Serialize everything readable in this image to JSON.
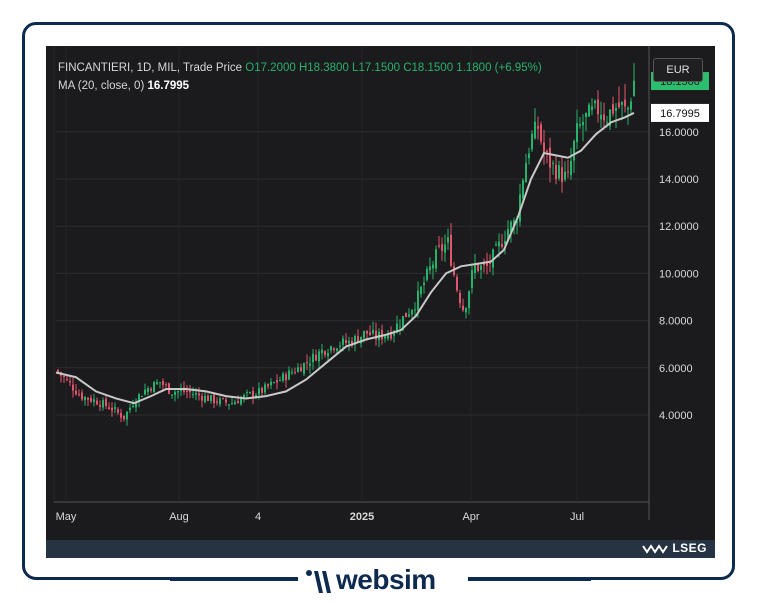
{
  "legend": {
    "line1_prefix": "FINCANTIERI, 1D, MIL, Trade Price",
    "open": "O17.2000",
    "high": "H18.3800",
    "low": "L17.1500",
    "close": "C18.1500",
    "change": "1.1800 (+6.95%)",
    "ma_label": "MA (20, close, 0)",
    "ma_value": "16.7995"
  },
  "currency": "EUR",
  "price_tags": {
    "last": "18.1500",
    "ma": "16.7995"
  },
  "footer": {
    "provider": "LSEG"
  },
  "brand": {
    "name": "websim"
  },
  "colors": {
    "up": "#26b36b",
    "down": "#e2566c",
    "ma": "#c8c8c8",
    "background": "#1b1b1d",
    "accent_tag": "#2dbd6e"
  },
  "chart_data": {
    "type": "candlestick",
    "title": "FINCANTIERI, 1D, MIL, Trade Price",
    "y_ticks": [
      "4.0000",
      "6.0000",
      "8.0000",
      "10.0000",
      "12.0000",
      "14.0000",
      "16.0000"
    ],
    "x_ticks": [
      "May",
      "Aug",
      "4",
      "2025",
      "Apr",
      "Jul"
    ],
    "ylim": [
      2.0,
      19.0
    ],
    "series": [
      {
        "name": "Trade Price",
        "close_path": [
          [
            0,
            5.9
          ],
          [
            12,
            5.4
          ],
          [
            25,
            4.8
          ],
          [
            40,
            4.6
          ],
          [
            55,
            4.3
          ],
          [
            68,
            3.9
          ],
          [
            78,
            4.6
          ],
          [
            90,
            5.1
          ],
          [
            104,
            5.4
          ],
          [
            115,
            5.0
          ],
          [
            130,
            5.0
          ],
          [
            145,
            4.8
          ],
          [
            160,
            4.6
          ],
          [
            175,
            4.5
          ],
          [
            190,
            4.8
          ],
          [
            205,
            5.0
          ],
          [
            220,
            5.4
          ],
          [
            235,
            5.8
          ],
          [
            250,
            6.2
          ],
          [
            265,
            6.7
          ],
          [
            280,
            7.0
          ],
          [
            295,
            7.1
          ],
          [
            310,
            7.5
          ],
          [
            320,
            7.3
          ],
          [
            335,
            7.5
          ],
          [
            345,
            8.0
          ],
          [
            360,
            8.8
          ],
          [
            372,
            10.0
          ],
          [
            382,
            10.9
          ],
          [
            392,
            11.3
          ],
          [
            400,
            9.5
          ],
          [
            408,
            8.4
          ],
          [
            418,
            10.3
          ],
          [
            430,
            10.2
          ],
          [
            440,
            10.9
          ],
          [
            452,
            11.9
          ],
          [
            460,
            12.2
          ],
          [
            468,
            14.4
          ],
          [
            475,
            15.7
          ],
          [
            482,
            16.2
          ],
          [
            488,
            15.1
          ],
          [
            495,
            14.6
          ],
          [
            505,
            14.2
          ],
          [
            512,
            14.0
          ],
          [
            520,
            15.9
          ],
          [
            528,
            16.5
          ],
          [
            536,
            16.8
          ],
          [
            544,
            17.0
          ],
          [
            550,
            16.6
          ],
          [
            557,
            17.0
          ],
          [
            565,
            17.1
          ],
          [
            571,
            16.8
          ],
          [
            578,
            18.15
          ]
        ]
      },
      {
        "name": "MA (20, close, 0)",
        "values": [
          [
            0,
            5.8
          ],
          [
            20,
            5.6
          ],
          [
            40,
            5.0
          ],
          [
            60,
            4.7
          ],
          [
            78,
            4.5
          ],
          [
            95,
            4.8
          ],
          [
            110,
            5.1
          ],
          [
            130,
            5.1
          ],
          [
            150,
            5.0
          ],
          [
            170,
            4.8
          ],
          [
            190,
            4.7
          ],
          [
            210,
            4.8
          ],
          [
            230,
            5.0
          ],
          [
            250,
            5.5
          ],
          [
            270,
            6.2
          ],
          [
            290,
            6.9
          ],
          [
            310,
            7.2
          ],
          [
            330,
            7.4
          ],
          [
            345,
            7.6
          ],
          [
            360,
            8.2
          ],
          [
            375,
            9.2
          ],
          [
            390,
            10.0
          ],
          [
            405,
            10.3
          ],
          [
            420,
            10.4
          ],
          [
            435,
            10.5
          ],
          [
            448,
            11.0
          ],
          [
            462,
            12.4
          ],
          [
            475,
            14.0
          ],
          [
            488,
            15.1
          ],
          [
            500,
            15.0
          ],
          [
            512,
            14.9
          ],
          [
            525,
            15.2
          ],
          [
            540,
            15.9
          ],
          [
            555,
            16.4
          ],
          [
            568,
            16.6
          ],
          [
            578,
            16.8
          ]
        ]
      }
    ]
  }
}
